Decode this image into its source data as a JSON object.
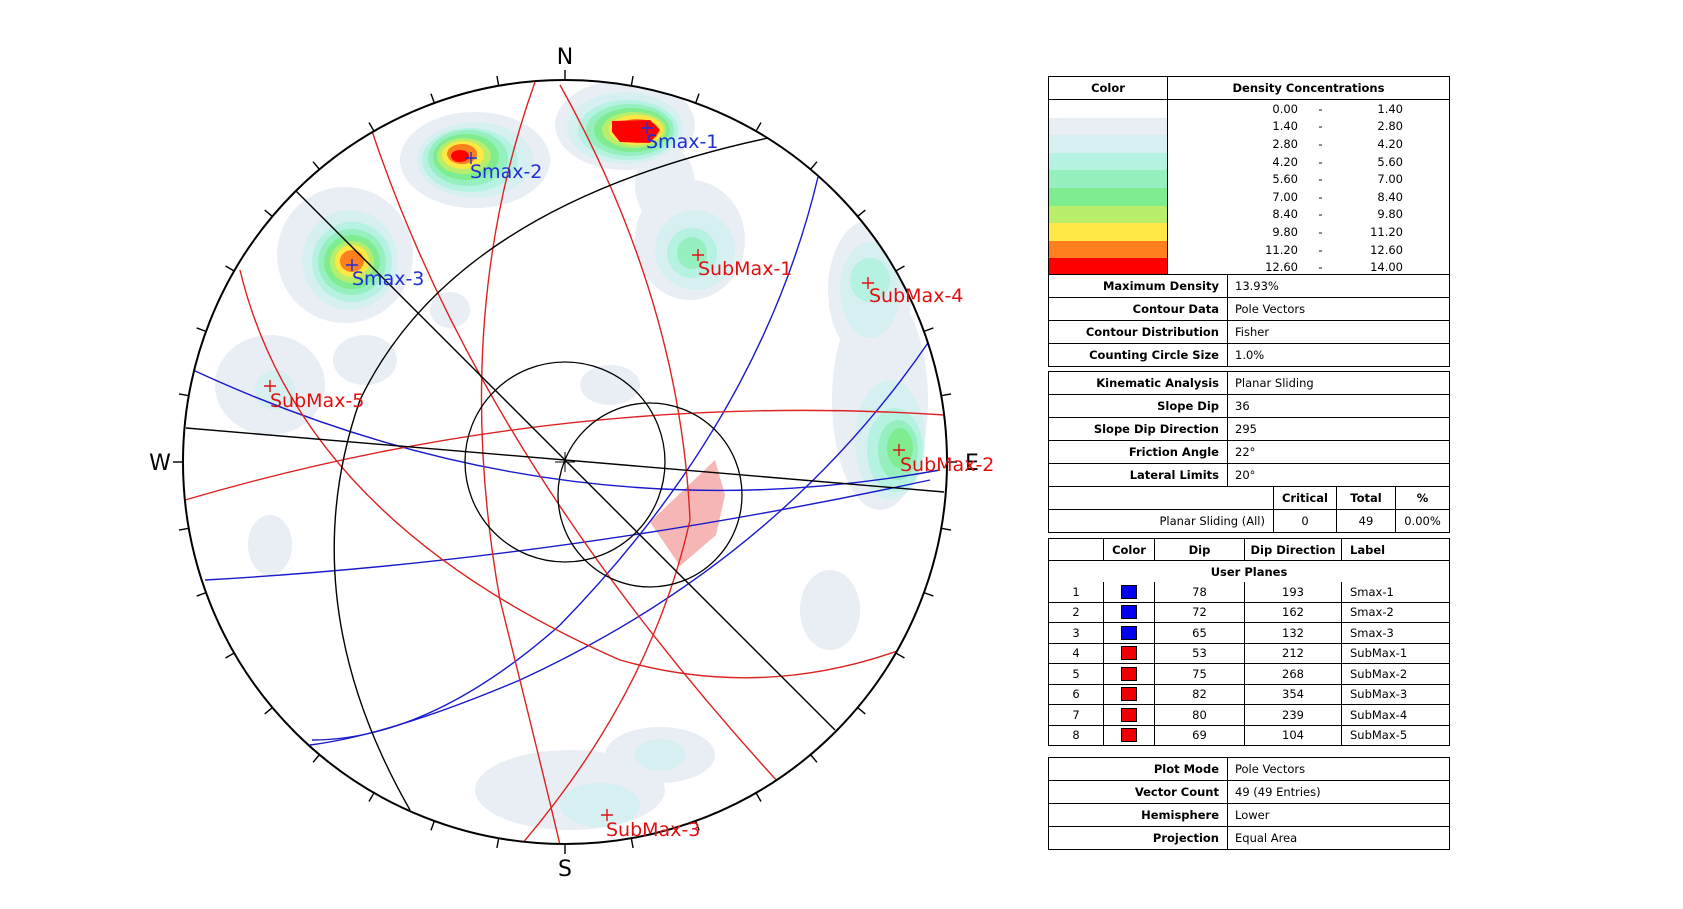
{
  "compass": {
    "north": "N",
    "south": "S",
    "east": "E",
    "west": "W"
  },
  "colors": {
    "smax_label": "#1f2fd6",
    "submax_label": "#e01010",
    "pole_plane_blue": "#1a1acc",
    "pole_plane_red": "#dd2222",
    "critical_zone": "#f7b6b6"
  },
  "pole_labels": [
    {
      "text": "Smax-1",
      "group": "smax"
    },
    {
      "text": "Smax-2",
      "group": "smax"
    },
    {
      "text": "Smax-3",
      "group": "smax"
    },
    {
      "text": "SubMax-1",
      "group": "submax"
    },
    {
      "text": "SubMax-2",
      "group": "submax"
    },
    {
      "text": "SubMax-3",
      "group": "submax"
    },
    {
      "text": "SubMax-4",
      "group": "submax"
    },
    {
      "text": "SubMax-5",
      "group": "submax"
    }
  ],
  "density_legend": {
    "header_color": "Color",
    "header_conc": "Density Concentrations",
    "bins": [
      {
        "from": "0.00",
        "to": "1.40",
        "color": "#ffffff"
      },
      {
        "from": "1.40",
        "to": "2.80",
        "color": "#e9edf4"
      },
      {
        "from": "2.80",
        "to": "4.20",
        "color": "#d6f0f1"
      },
      {
        "from": "4.20",
        "to": "5.60",
        "color": "#b5f2e1"
      },
      {
        "from": "5.60",
        "to": "7.00",
        "color": "#96efbf"
      },
      {
        "from": "7.00",
        "to": "8.40",
        "color": "#80ec90"
      },
      {
        "from": "8.40",
        "to": "9.80",
        "color": "#b9ee6b"
      },
      {
        "from": "9.80",
        "to": "11.20",
        "color": "#ffe844"
      },
      {
        "from": "11.20",
        "to": "12.60",
        "color": "#ff7f1e"
      },
      {
        "from": "12.60",
        "to": "14.00",
        "color": "#ff0000"
      }
    ],
    "dash": "-"
  },
  "contour_info": [
    {
      "label": "Maximum Density",
      "value": "13.93%"
    },
    {
      "label": "Contour Data",
      "value": "Pole Vectors"
    },
    {
      "label": "Contour Distribution",
      "value": "Fisher"
    },
    {
      "label": "Counting Circle Size",
      "value": "1.0%"
    }
  ],
  "kinematic": [
    {
      "label": "Kinematic Analysis",
      "value": "Planar Sliding"
    },
    {
      "label": "Slope Dip",
      "value": "36"
    },
    {
      "label": "Slope Dip Direction",
      "value": "295"
    },
    {
      "label": "Friction Angle",
      "value": "22°"
    },
    {
      "label": "Lateral Limits",
      "value": "20°"
    }
  ],
  "kinematic_results": {
    "headers": [
      "Critical",
      "Total",
      "%"
    ],
    "row_label": "Planar Sliding (All)",
    "critical": "0",
    "total": "49",
    "percent": "0.00%"
  },
  "user_planes": {
    "headers": [
      "Color",
      "Dip",
      "Dip Direction",
      "Label"
    ],
    "title": "User Planes",
    "rows": [
      {
        "id": "1",
        "color": "#0000ee",
        "dip": "78",
        "dip_dir": "193",
        "label": "Smax-1"
      },
      {
        "id": "2",
        "color": "#0000ee",
        "dip": "72",
        "dip_dir": "162",
        "label": "Smax-2"
      },
      {
        "id": "3",
        "color": "#0000ee",
        "dip": "65",
        "dip_dir": "132",
        "label": "Smax-3"
      },
      {
        "id": "4",
        "color": "#ee0000",
        "dip": "53",
        "dip_dir": "212",
        "label": "SubMax-1"
      },
      {
        "id": "5",
        "color": "#ee0000",
        "dip": "75",
        "dip_dir": "268",
        "label": "SubMax-2"
      },
      {
        "id": "6",
        "color": "#ee0000",
        "dip": "82",
        "dip_dir": "354",
        "label": "SubMax-3"
      },
      {
        "id": "7",
        "color": "#ee0000",
        "dip": "80",
        "dip_dir": "239",
        "label": "SubMax-4"
      },
      {
        "id": "8",
        "color": "#ee0000",
        "dip": "69",
        "dip_dir": "104",
        "label": "SubMax-5"
      }
    ]
  },
  "plot_info": [
    {
      "label": "Plot Mode",
      "value": "Pole Vectors"
    },
    {
      "label": "Vector Count",
      "value": "49 (49 Entries)"
    },
    {
      "label": "Hemisphere",
      "value": "Lower"
    },
    {
      "label": "Projection",
      "value": "Equal Area"
    }
  ]
}
